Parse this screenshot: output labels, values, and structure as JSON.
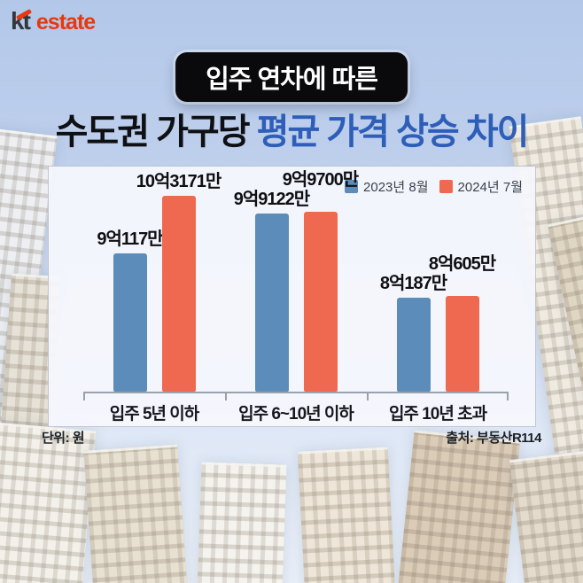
{
  "logo": {
    "kt": "kt",
    "estate": "estate"
  },
  "header": {
    "badge": "입주 연차에 따른",
    "title_prefix": "수도권 가구당 ",
    "title_accent": "평균 가격 상승 차이"
  },
  "chart_data": {
    "type": "bar",
    "title": "입주 연차에 따른 수도권 가구당 평균 가격 상승 차이",
    "categories": [
      "입주 5년 이하",
      "입주 6~10년 이하",
      "입주 10년 초과"
    ],
    "series": [
      {
        "name": "2023년 8월",
        "color": "#5b8cba",
        "values": [
          90117,
          99122,
          80187
        ],
        "value_labels": [
          "9억117만",
          "9억9122만",
          "8억187만"
        ]
      },
      {
        "name": "2024년 7월",
        "color": "#ef6950",
        "values": [
          103171,
          99700,
          80605
        ],
        "value_labels": [
          "10억3171만",
          "9억9700만",
          "8억605만"
        ]
      }
    ],
    "values_unit": "만원",
    "ylim": [
      59000,
      106000
    ],
    "grid": false,
    "legend_position": "top-right"
  },
  "footer": {
    "unit_note": "단위: 원",
    "source": "출처: 부동산R114"
  },
  "colors": {
    "accent_blue": "#2e5eb8",
    "bar_blue": "#5b8cba",
    "bar_red": "#ef6950",
    "badge_bg": "#0a0a0c",
    "logo_red": "#e8380d"
  }
}
